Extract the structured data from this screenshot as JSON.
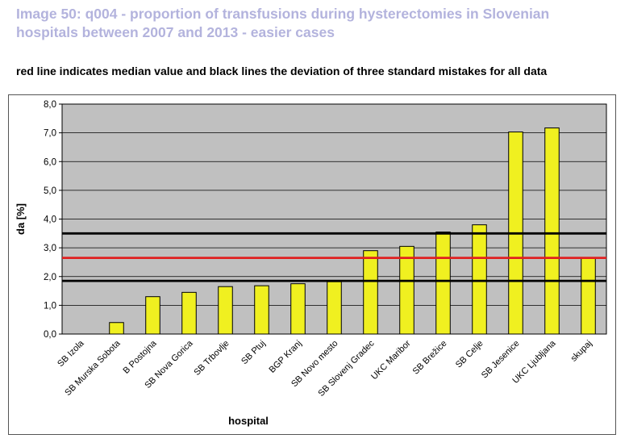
{
  "header": {
    "title": "Image 50: q004 - proportion of transfusions during hysterectomies in Slovenian hospitals between 2007 and 2013 - easier cases",
    "subtitle": "red line indicates median value and black lines the deviation of three standard mistakes for all data"
  },
  "chart_data": {
    "type": "bar",
    "xlabel": "hospital",
    "ylabel": "da [%]",
    "ylim": [
      0,
      8
    ],
    "ytick_step": 1,
    "ytick_labels": [
      "0,0",
      "1,0",
      "2,0",
      "3,0",
      "4,0",
      "5,0",
      "6,0",
      "7,0",
      "8,0"
    ],
    "grid": true,
    "legend": "none",
    "categories": [
      "SB Izola",
      "SB Murska Sobota",
      "B Postojna",
      "SB Nova Gorica",
      "SB Trbovlje",
      "SB Ptuj",
      "BGP Kranj",
      "SB Novo mesto",
      "SB Slovenj Gradec",
      "UKC Maribor",
      "SB Brežice",
      "SB Celje",
      "SB Jesenice",
      "UKC Ljubljana",
      "skupaj"
    ],
    "values": [
      0.0,
      0.4,
      1.3,
      1.45,
      1.65,
      1.68,
      1.75,
      1.82,
      2.9,
      3.05,
      3.55,
      3.8,
      7.03,
      7.17,
      2.65
    ],
    "reference_lines": [
      {
        "kind": "median",
        "value": 2.65,
        "color": "#e02020"
      },
      {
        "kind": "upper-limit",
        "value": 3.5,
        "color": "#000000"
      },
      {
        "kind": "lower-limit",
        "value": 1.85,
        "color": "#000000"
      }
    ],
    "colors": {
      "bar_fill": "#f0f020",
      "bar_stroke": "#000000",
      "plot_bg": "#c0c0c0",
      "grid": "#000000"
    }
  }
}
